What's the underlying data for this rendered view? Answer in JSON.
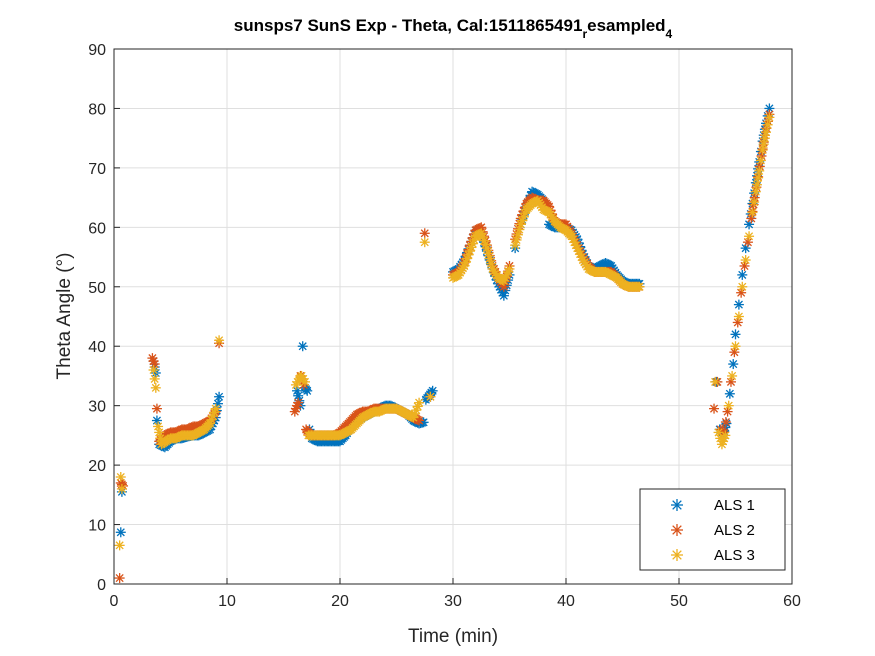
{
  "chart_data": {
    "type": "scatter",
    "title_main": "sunsps7 SunS Exp - Theta, Cal:1511865491",
    "title_sub1": "r",
    "title_mid": "esampled",
    "title_sub2": "4",
    "xlabel": "Time (min)",
    "ylabel": "Theta Angle (°)",
    "xlim": [
      0,
      60
    ],
    "ylim": [
      0,
      90
    ],
    "xticks": [
      0,
      10,
      20,
      30,
      40,
      50,
      60
    ],
    "yticks": [
      0,
      10,
      20,
      30,
      40,
      50,
      60,
      70,
      80,
      90
    ],
    "grid": true,
    "legend_position": "bottom-right",
    "marker": "*",
    "series": [
      {
        "name": "ALS 1",
        "color": "#0072BD",
        "x": [
          0.6,
          0.7,
          3.5,
          3.7,
          3.8,
          4.0,
          4.5,
          5.0,
          5.5,
          6.0,
          6.5,
          7.0,
          7.5,
          8.0,
          8.5,
          9.0,
          9.3,
          16.2,
          16.5,
          16.7,
          16.9,
          17.1,
          17.3,
          17.5,
          18.0,
          18.5,
          19.0,
          19.5,
          20.0,
          20.5,
          21.0,
          21.5,
          22.0,
          22.5,
          23.0,
          23.5,
          24.0,
          24.5,
          25.0,
          25.5,
          26.0,
          26.5,
          27.0,
          27.4,
          27.6,
          28.2,
          30.0,
          30.5,
          31.0,
          31.5,
          32.0,
          32.5,
          33.0,
          33.5,
          34.0,
          34.5,
          35.0,
          35.5,
          36.0,
          36.5,
          37.0,
          37.5,
          38.0,
          38.5,
          39.0,
          39.5,
          40.0,
          40.5,
          41.0,
          41.5,
          42.0,
          42.5,
          43.0,
          43.5,
          44.0,
          44.5,
          45.0,
          45.5,
          46.0,
          46.5,
          53.3,
          53.6,
          53.9,
          54.2,
          54.5,
          54.8,
          55.0,
          55.3,
          55.6,
          55.9,
          56.2,
          56.5,
          56.8,
          57.1,
          57.4,
          57.7,
          58.0
        ],
        "y": [
          8.7,
          15.5,
          37.5,
          35.5,
          27.5,
          23.5,
          23.0,
          24.0,
          24.5,
          24.5,
          24.8,
          25.0,
          25.0,
          25.5,
          26.0,
          28.0,
          31.5,
          32.5,
          30.0,
          40.0,
          33.0,
          32.5,
          26.0,
          24.5,
          24.0,
          24.0,
          24.0,
          24.0,
          24.0,
          25.0,
          26.5,
          27.5,
          28.0,
          28.5,
          29.0,
          29.5,
          30.0,
          30.0,
          29.5,
          29.0,
          28.5,
          27.5,
          27.0,
          27.2,
          31.0,
          32.5,
          52.5,
          53.0,
          54.5,
          57.0,
          59.5,
          59.0,
          56.0,
          53.0,
          50.5,
          48.5,
          52.0,
          56.5,
          60.5,
          63.5,
          66.0,
          65.5,
          64.5,
          60.5,
          60.0,
          60.0,
          60.0,
          59.5,
          58.0,
          55.5,
          53.5,
          53.0,
          53.5,
          54.0,
          53.5,
          52.0,
          51.0,
          50.5,
          50.5,
          50.5,
          34.0,
          26.0,
          25.0,
          27.0,
          32.0,
          37.0,
          42.0,
          47.0,
          52.0,
          56.5,
          60.5,
          64.0,
          67.5,
          71.0,
          74.5,
          77.5,
          80.0
        ]
      },
      {
        "name": "ALS 2",
        "color": "#D95319",
        "x": [
          0.5,
          0.6,
          0.8,
          3.4,
          3.6,
          3.8,
          4.0,
          4.5,
          5.0,
          5.5,
          6.0,
          6.5,
          7.0,
          7.5,
          8.0,
          8.5,
          9.0,
          9.3,
          16.0,
          16.3,
          16.5,
          16.8,
          17.0,
          17.2,
          17.5,
          18.0,
          18.5,
          19.0,
          19.5,
          20.0,
          20.5,
          21.0,
          21.5,
          22.0,
          22.5,
          23.0,
          23.5,
          24.0,
          24.5,
          25.0,
          25.5,
          26.0,
          26.5,
          27.0,
          27.5,
          28.0,
          30.0,
          30.5,
          31.0,
          31.5,
          32.0,
          32.5,
          33.0,
          33.5,
          34.0,
          34.5,
          35.0,
          35.5,
          36.0,
          36.5,
          37.0,
          37.5,
          38.0,
          38.5,
          39.0,
          39.5,
          40.0,
          40.5,
          41.0,
          41.5,
          42.0,
          42.5,
          43.0,
          43.5,
          44.0,
          44.5,
          45.0,
          45.5,
          46.0,
          46.5,
          53.1,
          53.4,
          53.7,
          54.0,
          54.3,
          54.6,
          54.9,
          55.2,
          55.5,
          55.8,
          56.1,
          56.4,
          56.7,
          57.0,
          57.3,
          57.6,
          58.0
        ],
        "y": [
          1.0,
          17.0,
          16.5,
          38.0,
          37.0,
          29.5,
          24.0,
          25.0,
          25.5,
          25.5,
          26.0,
          26.0,
          26.5,
          26.5,
          27.0,
          27.5,
          29.0,
          40.5,
          29.0,
          30.5,
          35.0,
          33.5,
          26.0,
          25.5,
          25.0,
          25.0,
          25.0,
          25.0,
          25.0,
          25.5,
          26.5,
          27.5,
          28.5,
          29.0,
          29.0,
          29.5,
          29.5,
          29.5,
          29.5,
          29.5,
          29.0,
          28.5,
          28.0,
          27.5,
          59.0,
          31.5,
          52.0,
          52.5,
          54.0,
          57.0,
          59.5,
          60.0,
          57.0,
          53.5,
          51.5,
          50.0,
          53.5,
          58.0,
          61.5,
          64.0,
          65.0,
          64.5,
          64.5,
          63.5,
          61.0,
          60.5,
          60.5,
          59.0,
          57.0,
          55.0,
          53.5,
          52.5,
          52.5,
          52.5,
          52.5,
          51.5,
          50.5,
          50.0,
          50.0,
          50.0,
          29.5,
          34.0,
          26.0,
          25.5,
          29.0,
          34.0,
          39.0,
          44.0,
          49.0,
          53.5,
          57.5,
          61.5,
          65.0,
          68.5,
          72.0,
          75.5,
          79.0
        ]
      },
      {
        "name": "ALS 3",
        "color": "#EDB120",
        "x": [
          0.5,
          0.6,
          0.7,
          3.5,
          3.7,
          3.9,
          4.2,
          4.6,
          5.0,
          5.5,
          6.0,
          6.5,
          7.0,
          7.5,
          8.0,
          8.5,
          9.0,
          9.3,
          16.1,
          16.4,
          16.6,
          16.9,
          17.2,
          17.6,
          18.0,
          18.5,
          19.0,
          19.5,
          20.0,
          20.5,
          21.0,
          21.5,
          22.0,
          22.5,
          23.0,
          23.5,
          24.0,
          24.5,
          25.0,
          25.5,
          26.0,
          26.5,
          27.0,
          27.5,
          28.0,
          30.0,
          30.5,
          31.0,
          31.5,
          32.0,
          32.5,
          33.0,
          33.5,
          34.0,
          34.5,
          35.0,
          35.5,
          36.0,
          36.5,
          37.0,
          37.5,
          38.0,
          38.5,
          39.0,
          39.5,
          40.0,
          40.5,
          41.0,
          41.5,
          42.0,
          42.5,
          43.0,
          43.5,
          44.0,
          44.5,
          45.0,
          45.5,
          46.0,
          46.5,
          53.2,
          53.5,
          53.8,
          54.1,
          54.4,
          54.7,
          55.0,
          55.3,
          55.6,
          55.9,
          56.2,
          56.5,
          56.8,
          57.1,
          57.4,
          57.7,
          58.0
        ],
        "y": [
          6.5,
          18.0,
          16.0,
          36.0,
          33.0,
          26.5,
          23.5,
          24.0,
          24.5,
          24.5,
          25.0,
          25.0,
          25.0,
          25.5,
          26.0,
          27.0,
          29.5,
          41.0,
          33.5,
          34.5,
          35.0,
          34.0,
          25.0,
          25.0,
          25.0,
          25.0,
          25.0,
          25.0,
          25.0,
          25.5,
          26.0,
          27.0,
          28.0,
          28.5,
          29.0,
          29.0,
          29.5,
          29.5,
          29.5,
          29.0,
          28.5,
          28.0,
          30.5,
          57.5,
          31.5,
          51.5,
          52.0,
          53.5,
          56.0,
          58.5,
          59.0,
          56.5,
          53.0,
          51.5,
          51.0,
          53.0,
          57.0,
          60.5,
          63.0,
          64.0,
          64.5,
          63.0,
          62.5,
          61.0,
          60.0,
          59.5,
          58.5,
          56.5,
          54.5,
          53.0,
          52.5,
          52.5,
          52.5,
          52.0,
          51.5,
          50.5,
          50.0,
          50.0,
          50.0,
          34.0,
          25.5,
          23.5,
          25.0,
          30.0,
          35.0,
          40.0,
          45.0,
          50.0,
          54.5,
          58.5,
          62.5,
          66.0,
          69.5,
          73.0,
          76.0,
          78.5
        ]
      }
    ]
  }
}
